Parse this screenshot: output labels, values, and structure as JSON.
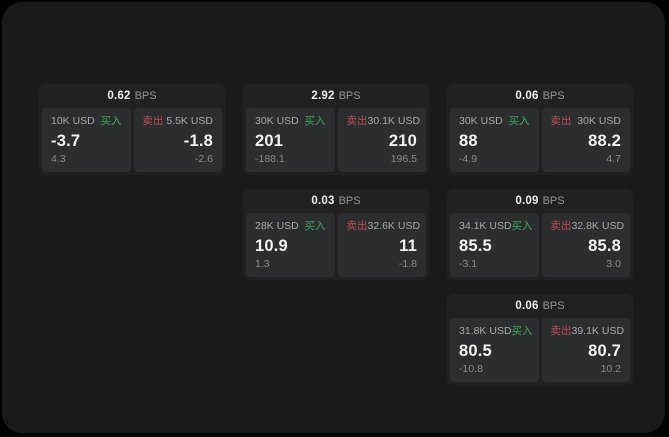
{
  "colors": {
    "background": "#000000",
    "surface": "#1a1a1b",
    "card_bg": "#212122",
    "panel_bg": "#2c2d2e",
    "buy_green": "#3fa662",
    "sell_red": "#bc4b59",
    "text_primary": "#f2f2f2",
    "text_secondary": "#a8a8a8",
    "text_muted": "#8a8a8a"
  },
  "labels": {
    "bps_suffix": "BPS",
    "buy": "买入",
    "sell": "卖出"
  },
  "cards": [
    {
      "bps": "0.62",
      "row": 1,
      "col": 1,
      "buy_side": {
        "amount": "10K USD",
        "price": "-3.7",
        "delta": "4.3"
      },
      "sell_side": {
        "amount": "5.5K USD",
        "price": "-1.8",
        "delta": "-2.6"
      }
    },
    {
      "bps": "2.92",
      "row": 1,
      "col": 2,
      "buy_side": {
        "amount": "30K USD",
        "price": "201",
        "delta": "-188.1"
      },
      "sell_side": {
        "amount": "30.1K USD",
        "price": "210",
        "delta": "196.5"
      }
    },
    {
      "bps": "0.06",
      "row": 1,
      "col": 3,
      "buy_side": {
        "amount": "30K USD",
        "price": "88",
        "delta": "-4.9"
      },
      "sell_side": {
        "amount": "30K USD",
        "price": "88.2",
        "delta": "4.7"
      }
    },
    {
      "bps": "0.03",
      "row": 2,
      "col": 2,
      "buy_side": {
        "amount": "28K USD",
        "price": "10.9",
        "delta": "1.3"
      },
      "sell_side": {
        "amount": "32.6K USD",
        "price": "11",
        "delta": "-1.8"
      }
    },
    {
      "bps": "0.09",
      "row": 2,
      "col": 3,
      "buy_side": {
        "amount": "34.1K USD",
        "price": "85.5",
        "delta": "-3.1"
      },
      "sell_side": {
        "amount": "32.8K USD",
        "price": "85.8",
        "delta": "3.0"
      }
    },
    {
      "bps": "0.06",
      "row": 3,
      "col": 3,
      "buy_side": {
        "amount": "31.8K USD",
        "price": "80.5",
        "delta": "-10.8"
      },
      "sell_side": {
        "amount": "39.1K USD",
        "price": "80.7",
        "delta": "10.2"
      }
    }
  ]
}
